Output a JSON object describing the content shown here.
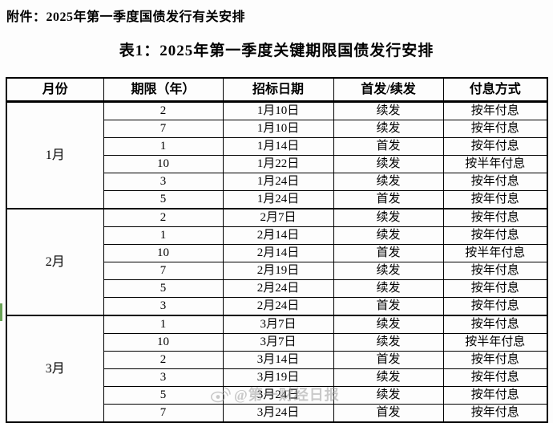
{
  "page": {
    "attachment_title": "附件：2025年第一季度国债发行有关安排",
    "table_title": "表1：2025年第一季度关键期限国债发行安排"
  },
  "table": {
    "headers": [
      "月份",
      "期限（年）",
      "招标日期",
      "首发/续发",
      "付息方式"
    ],
    "groups": [
      {
        "month": "1月",
        "rows": [
          [
            "2",
            "1月10日",
            "续发",
            "按年付息"
          ],
          [
            "7",
            "1月10日",
            "续发",
            "按年付息"
          ],
          [
            "1",
            "1月14日",
            "首发",
            "按年付息"
          ],
          [
            "10",
            "1月22日",
            "续发",
            "按半年付息"
          ],
          [
            "3",
            "1月24日",
            "续发",
            "按年付息"
          ],
          [
            "5",
            "1月24日",
            "首发",
            "按年付息"
          ]
        ]
      },
      {
        "month": "2月",
        "rows": [
          [
            "2",
            "2月7日",
            "续发",
            "按年付息"
          ],
          [
            "1",
            "2月14日",
            "续发",
            "按年付息"
          ],
          [
            "10",
            "2月14日",
            "首发",
            "按半年付息"
          ],
          [
            "7",
            "2月19日",
            "续发",
            "按年付息"
          ],
          [
            "5",
            "2月24日",
            "续发",
            "按年付息"
          ],
          [
            "3",
            "2月24日",
            "首发",
            "按年付息"
          ]
        ]
      },
      {
        "month": "3月",
        "rows": [
          [
            "1",
            "3月7日",
            "续发",
            "按年付息"
          ],
          [
            "10",
            "3月7日",
            "续发",
            "按半年付息"
          ],
          [
            "2",
            "3月14日",
            "首发",
            "按年付息"
          ],
          [
            "3",
            "3月19日",
            "续发",
            "按年付息"
          ],
          [
            "5",
            "3月24日",
            "续发",
            "按年付息"
          ],
          [
            "7",
            "3月24日",
            "首发",
            "按年付息"
          ]
        ]
      }
    ]
  },
  "watermark": {
    "icon": "weibo-icon",
    "text": "@第一财经日报",
    "color": "#9f9f9f"
  },
  "colors": {
    "border": "#000000",
    "background": "#fdfdfd",
    "green_artifact": "#68a254"
  }
}
